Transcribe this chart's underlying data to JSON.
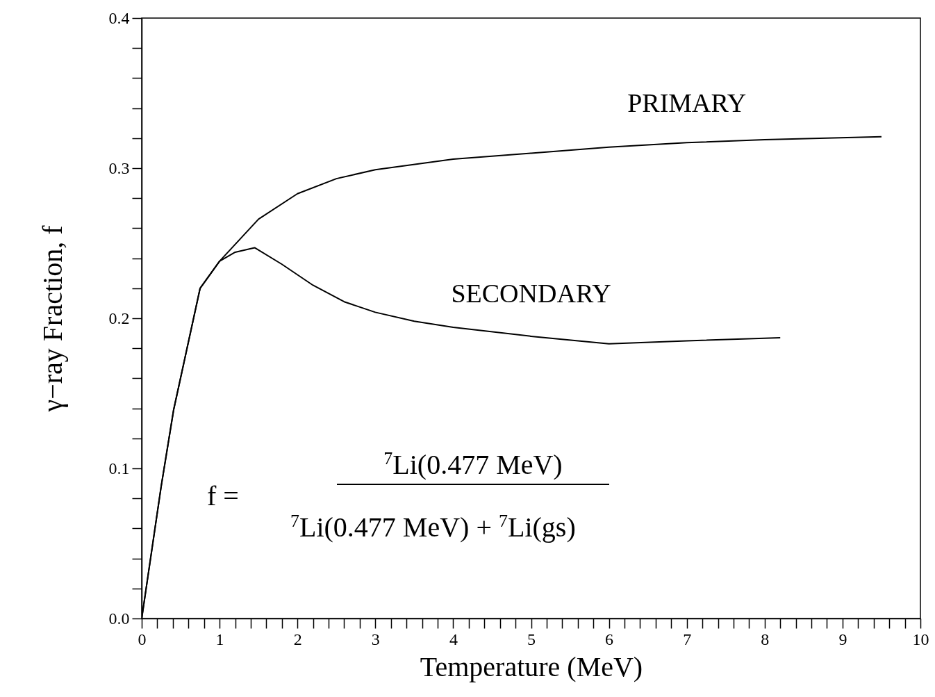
{
  "chart_data": {
    "type": "line",
    "xlabel": "Temperature (MeV)",
    "ylabel": "γ−ray Fraction, f",
    "annotations": [
      "f =",
      "$^{7}$Li(0.477 MeV)",
      "$^{7}$Li(0.477 MeV) + $^{7}$Li(gs)"
    ],
    "series": [
      {
        "name": "PRIMARY",
        "color": "#000000",
        "x": [
          0,
          0.25,
          0.41,
          0.75,
          1,
          1.5,
          2,
          2.5,
          3,
          4,
          5,
          6,
          7,
          8,
          9.5
        ],
        "values": [
          0,
          0.088,
          0.139,
          0.22,
          0.238,
          0.266,
          0.283,
          0.293,
          0.299,
          0.306,
          0.31,
          0.314,
          0.317,
          0.319,
          0.321
        ]
      },
      {
        "name": "SECONDARY",
        "color": "#000000",
        "x": [
          0,
          0.25,
          0.41,
          0.75,
          1,
          1.2,
          1.45,
          1.8,
          2.2,
          2.6,
          3,
          3.5,
          4,
          5,
          6,
          7,
          8.2
        ],
        "values": [
          0,
          0.088,
          0.139,
          0.22,
          0.238,
          0.244,
          0.247,
          0.236,
          0.222,
          0.211,
          0.204,
          0.198,
          0.194,
          0.188,
          0.183,
          0.185,
          0.187
        ]
      }
    ],
    "xlim": [
      0,
      10
    ],
    "ylim": [
      0,
      0.4
    ],
    "xticks": [
      0,
      {
        "value": 0.2,
        "label": null
      },
      {
        "value": 0.4,
        "label": null
      },
      {
        "value": 0.6,
        "label": null
      },
      {
        "value": 0.8,
        "label": null
      },
      1,
      {
        "value": 1.2,
        "label": null
      },
      {
        "value": 1.4,
        "label": null
      },
      {
        "value": 1.6,
        "label": null
      },
      {
        "value": 1.8,
        "label": null
      },
      2,
      {
        "value": 2.2,
        "label": null
      },
      {
        "value": 2.4,
        "label": null
      },
      {
        "value": 2.6,
        "label": null
      },
      {
        "value": 2.8,
        "label": null
      },
      3,
      {
        "value": 3.2,
        "label": null
      },
      {
        "value": 3.4,
        "label": null
      },
      {
        "value": 3.6,
        "label": null
      },
      {
        "value": 3.8,
        "label": null
      },
      4,
      {
        "value": 4.2,
        "label": null
      },
      {
        "value": 4.4,
        "label": null
      },
      {
        "value": 4.6,
        "label": null
      },
      {
        "value": 4.8,
        "label": null
      },
      5,
      {
        "value": 5.2,
        "label": null
      },
      {
        "value": 5.4,
        "label": null
      },
      {
        "value": 5.6,
        "label": null
      },
      {
        "value": 5.8,
        "label": null
      },
      6,
      {
        "value": 6.2,
        "label": null
      },
      {
        "value": 6.4,
        "label": null
      },
      {
        "value": 6.6,
        "label": null
      },
      {
        "value": 6.8,
        "label": null
      },
      7,
      {
        "value": 7.2,
        "label": null
      },
      {
        "value": 7.4,
        "label": null
      },
      {
        "value": 7.6,
        "label": null
      },
      {
        "value": 7.8,
        "label": null
      },
      8,
      {
        "value": 8.2,
        "label": null
      },
      {
        "value": 8.4,
        "label": null
      },
      {
        "value": 8.6,
        "label": null
      },
      {
        "value": 8.8,
        "label": null
      },
      9,
      {
        "value": 9.2,
        "label": null
      },
      {
        "value": 9.4,
        "label": null
      },
      {
        "value": 9.6,
        "label": null
      },
      {
        "value": 9.8,
        "label": null
      },
      10
    ],
    "yticks": [
      {
        "value": 0,
        "label": "0.0"
      },
      {
        "value": 0.02,
        "label": null
      },
      {
        "value": 0.04,
        "label": null
      },
      {
        "value": 0.06,
        "label": null
      },
      {
        "value": 0.08,
        "label": null
      },
      0.1,
      {
        "value": 0.12,
        "label": null
      },
      {
        "value": 0.14,
        "label": null
      },
      {
        "value": 0.16,
        "label": null
      },
      {
        "value": 0.18,
        "label": null
      },
      0.2,
      {
        "value": 0.22,
        "label": null
      },
      {
        "value": 0.24,
        "label": null
      },
      {
        "value": 0.26,
        "label": null
      },
      {
        "value": 0.28,
        "label": null
      },
      0.3,
      {
        "value": 0.32,
        "label": null
      },
      {
        "value": 0.34,
        "label": null
      },
      {
        "value": 0.36,
        "label": null
      },
      {
        "value": 0.38,
        "label": null
      },
      0.4
    ],
    "grid": false,
    "marker": "none",
    "line_style": "solid"
  }
}
